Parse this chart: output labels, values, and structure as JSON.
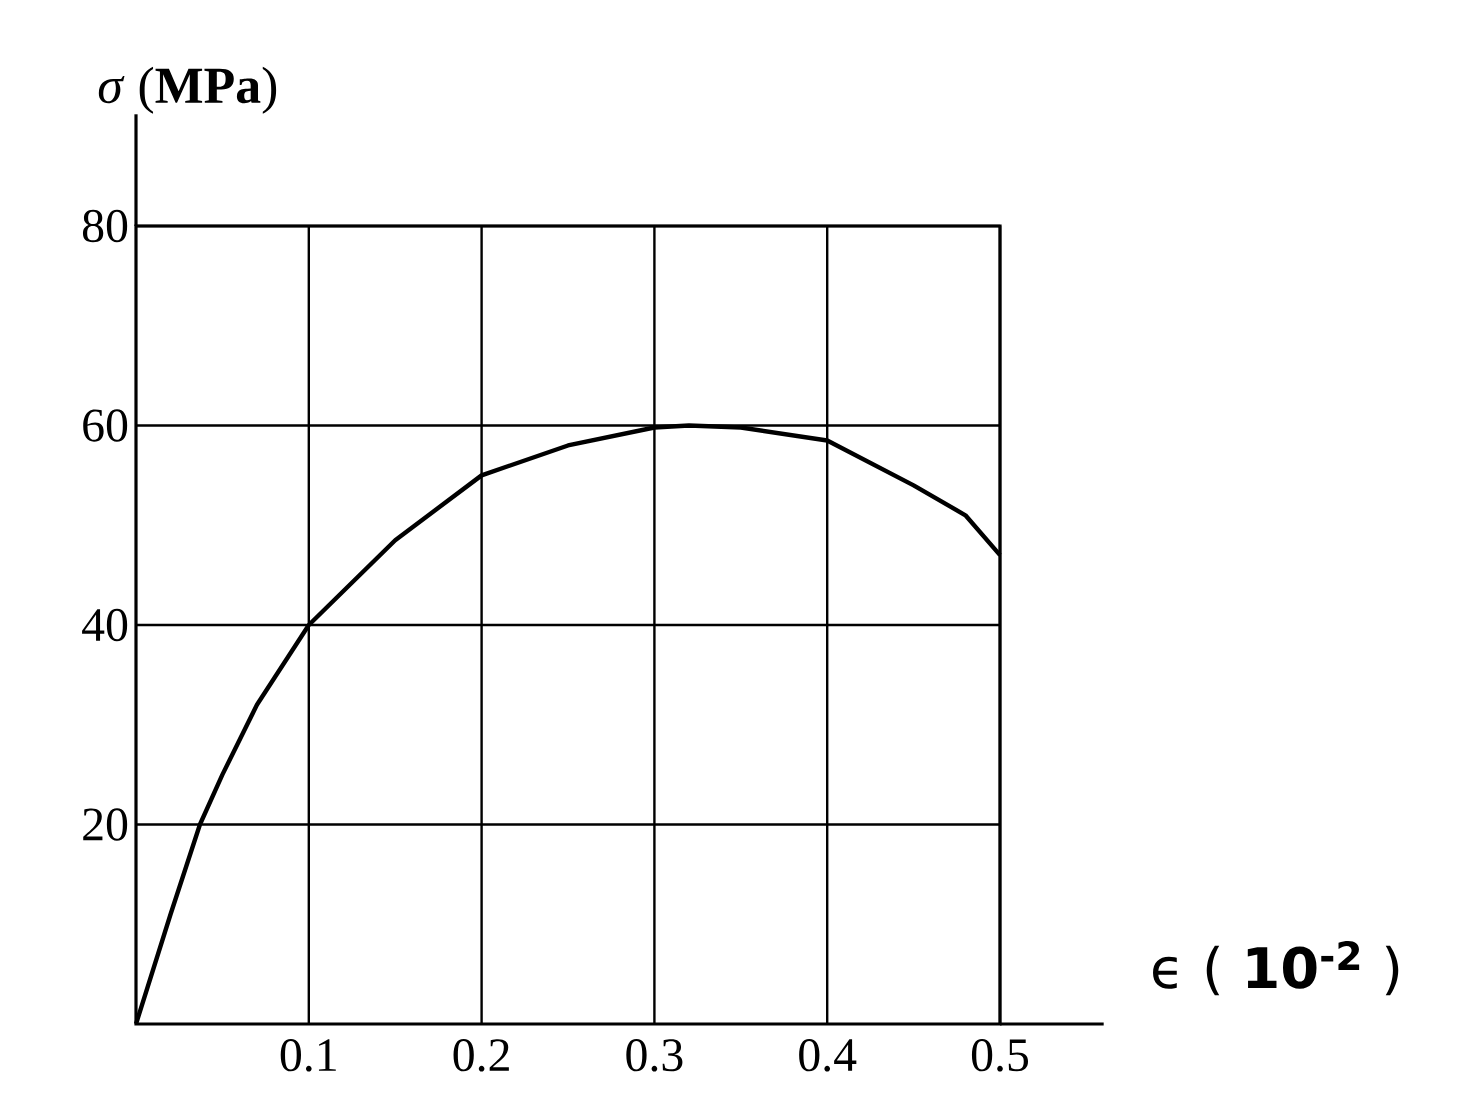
{
  "chart_data": {
    "type": "line",
    "xlabel": "ϵ ( **10$^{-2}$** )",
    "ylabel": "*σ* (**MPa**)",
    "xlim": [
      0,
      0.5
    ],
    "ylim": [
      0,
      80
    ],
    "xticks": [
      0.1,
      0.2,
      0.3,
      0.4,
      0.5
    ],
    "yticks": [
      20,
      40,
      60,
      80
    ],
    "grid": true,
    "color": "#000000",
    "marker": "none",
    "line_style": "solid",
    "x": [
      0,
      0.02,
      0.037,
      0.05,
      0.07,
      0.1,
      0.15,
      0.2,
      0.25,
      0.3,
      0.32,
      0.35,
      0.4,
      0.45,
      0.48,
      0.5
    ],
    "values": [
      0,
      11,
      20,
      25,
      32,
      40,
      48.5,
      55,
      58,
      59.8,
      60,
      59.8,
      58.5,
      54,
      51,
      47
    ]
  }
}
